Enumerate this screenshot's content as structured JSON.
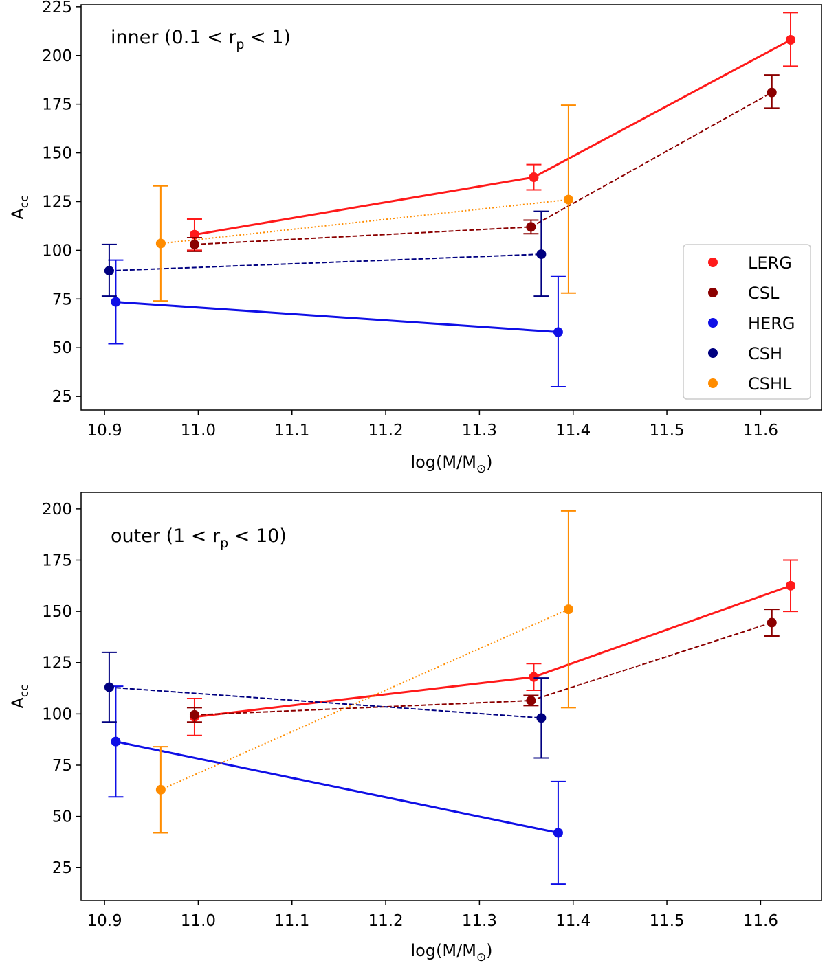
{
  "chart_data": [
    {
      "type": "line",
      "panel": "top",
      "annotation": {
        "prefix": "inner (0.1 < r",
        "sub": "p",
        "suffix": " < 1)"
      },
      "xlabel": {
        "prefix": "log(M/M",
        "sub": "⊙",
        "suffix": ")"
      },
      "ylabel": {
        "base": "A",
        "sub": "cc"
      },
      "xlim": [
        10.875,
        11.665
      ],
      "ylim": [
        18,
        226
      ],
      "xticks": [
        10.9,
        11.0,
        11.1,
        11.2,
        11.3,
        11.4,
        11.5,
        11.6
      ],
      "xtick_labels": [
        "10.9",
        "11.0",
        "11.1",
        "11.2",
        "11.3",
        "11.4",
        "11.5",
        "11.6"
      ],
      "yticks": [
        25,
        50,
        75,
        100,
        125,
        150,
        175,
        200,
        225
      ],
      "ytick_labels": [
        "25",
        "50",
        "75",
        "100",
        "125",
        "150",
        "175",
        "200",
        "225"
      ],
      "legend": {
        "position": "center-right",
        "entries": [
          "LERG",
          "CSL",
          "HERG",
          "CSH",
          "CSHL"
        ]
      },
      "series": [
        {
          "name": "LERG",
          "color": "#ff1a1a",
          "style": "solid",
          "x": [
            10.996,
            11.358,
            11.632
          ],
          "y": [
            108,
            137.5,
            208
          ],
          "err_low": [
            8,
            6.5,
            13.5
          ],
          "err_high": [
            8,
            6.5,
            14
          ]
        },
        {
          "name": "CSL",
          "color": "#8b0000",
          "style": "dashed",
          "x": [
            10.996,
            11.355,
            11.612
          ],
          "y": [
            103,
            112,
            181
          ],
          "err_low": [
            3.5,
            3.5,
            8
          ],
          "err_high": [
            3.5,
            3.5,
            9
          ]
        },
        {
          "name": "HERG",
          "color": "#0f0fe6",
          "style": "solid",
          "x": [
            10.912,
            11.384
          ],
          "y": [
            73.5,
            58
          ],
          "err_low": [
            21.5,
            28
          ],
          "err_high": [
            21.5,
            28.5
          ]
        },
        {
          "name": "CSH",
          "color": "#000080",
          "style": "dashed",
          "x": [
            10.905,
            11.366
          ],
          "y": [
            89.5,
            98
          ],
          "err_low": [
            13,
            21.5
          ],
          "err_high": [
            13.5,
            22
          ]
        },
        {
          "name": "CSHL",
          "color": "#ff8c00",
          "style": "dotted",
          "x": [
            10.96,
            11.395
          ],
          "y": [
            103.5,
            126
          ],
          "err_low": [
            29.5,
            48
          ],
          "err_high": [
            29.5,
            48.5
          ]
        }
      ]
    },
    {
      "type": "line",
      "panel": "bottom",
      "annotation": {
        "prefix": "outer (1 < r",
        "sub": "p",
        "suffix": " < 10)"
      },
      "xlabel": {
        "prefix": "log(M/M",
        "sub": "⊙",
        "suffix": ")"
      },
      "ylabel": {
        "base": "A",
        "sub": "cc"
      },
      "xlim": [
        10.875,
        11.665
      ],
      "ylim": [
        9,
        208
      ],
      "xticks": [
        10.9,
        11.0,
        11.1,
        11.2,
        11.3,
        11.4,
        11.5,
        11.6
      ],
      "xtick_labels": [
        "10.9",
        "11.0",
        "11.1",
        "11.2",
        "11.3",
        "11.4",
        "11.5",
        "11.6"
      ],
      "yticks": [
        25,
        50,
        75,
        100,
        125,
        150,
        175,
        200
      ],
      "ytick_labels": [
        "25",
        "50",
        "75",
        "100",
        "125",
        "150",
        "175",
        "200"
      ],
      "series": [
        {
          "name": "LERG",
          "color": "#ff1a1a",
          "style": "solid",
          "x": [
            10.996,
            11.358,
            11.632
          ],
          "y": [
            98.5,
            118,
            162.5
          ],
          "err_low": [
            9,
            6.5,
            12.5
          ],
          "err_high": [
            9,
            6.5,
            12.5
          ]
        },
        {
          "name": "CSL",
          "color": "#8b0000",
          "style": "dashed",
          "x": [
            10.996,
            11.355,
            11.612
          ],
          "y": [
            99.5,
            106.5,
            144.5
          ],
          "err_low": [
            3.5,
            2.5,
            6.5
          ],
          "err_high": [
            3.5,
            2.5,
            6.5
          ]
        },
        {
          "name": "HERG",
          "color": "#0f0fe6",
          "style": "solid",
          "x": [
            10.912,
            11.384
          ],
          "y": [
            86.5,
            42
          ],
          "err_low": [
            27,
            25
          ],
          "err_high": [
            27,
            25
          ]
        },
        {
          "name": "CSH",
          "color": "#000080",
          "style": "dashed",
          "x": [
            10.905,
            11.366
          ],
          "y": [
            113,
            98
          ],
          "err_low": [
            17,
            19.5
          ],
          "err_high": [
            17,
            19.5
          ]
        },
        {
          "name": "CSHL",
          "color": "#ff8c00",
          "style": "dotted",
          "x": [
            10.96,
            11.395
          ],
          "y": [
            63,
            151
          ],
          "err_low": [
            21,
            48
          ],
          "err_high": [
            21,
            48
          ]
        }
      ]
    }
  ]
}
